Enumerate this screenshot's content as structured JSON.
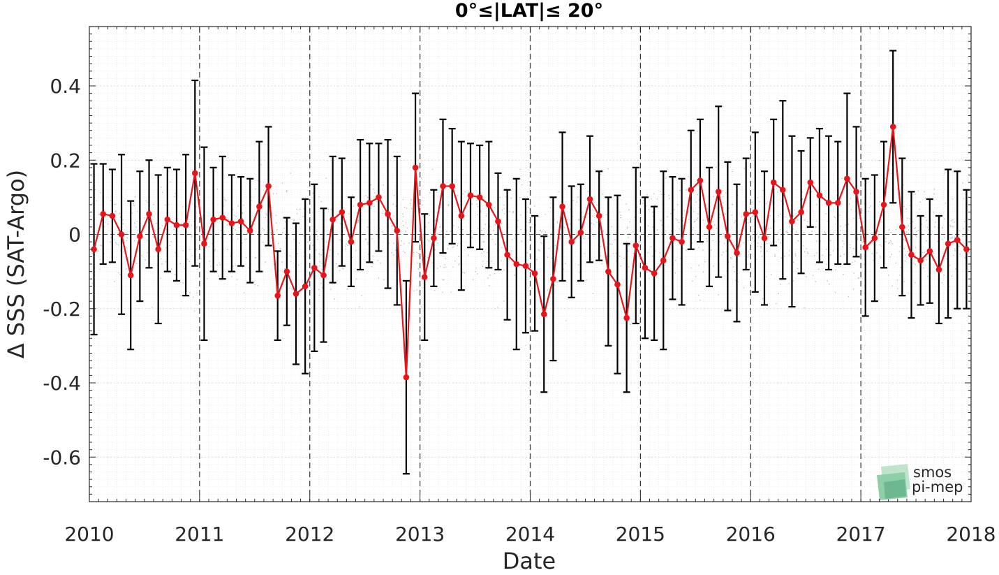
{
  "chart_data": {
    "type": "line",
    "title": "0°≤|LAT|≤ 20°",
    "xlabel": "Date",
    "ylabel": "Δ SSS (SAT-Argo)",
    "x_start_year": 2010,
    "xlim": [
      2010,
      2018
    ],
    "ylim": [
      -0.72,
      0.56
    ],
    "x_ticks": [
      "2010",
      "2011",
      "2012",
      "2013",
      "2014",
      "2015",
      "2016",
      "2017",
      "2018"
    ],
    "y_ticks": [
      {
        "value": 0.4,
        "label": "0.4"
      },
      {
        "value": 0.2,
        "label": "0.2"
      },
      {
        "value": 0,
        "label": "0"
      },
      {
        "value": -0.2,
        "label": "-0.2"
      },
      {
        "value": -0.4,
        "label": "-0.4"
      },
      {
        "value": -0.6,
        "label": "-0.6"
      }
    ],
    "grid": true,
    "year_separators": true,
    "series": [
      {
        "color": "#e8141a",
        "error_bar_color": "#000000",
        "x": [
          "2010-01",
          "2010-02",
          "2010-03",
          "2010-04",
          "2010-05",
          "2010-06",
          "2010-07",
          "2010-08",
          "2010-09",
          "2010-10",
          "2010-11",
          "2010-12",
          "2011-01",
          "2011-02",
          "2011-03",
          "2011-04",
          "2011-05",
          "2011-06",
          "2011-07",
          "2011-08",
          "2011-09",
          "2011-10",
          "2011-11",
          "2011-12",
          "2012-01",
          "2012-02",
          "2012-03",
          "2012-04",
          "2012-05",
          "2012-06",
          "2012-07",
          "2012-08",
          "2012-09",
          "2012-10",
          "2012-11",
          "2012-12",
          "2013-01",
          "2013-02",
          "2013-03",
          "2013-04",
          "2013-05",
          "2013-06",
          "2013-07",
          "2013-08",
          "2013-09",
          "2013-10",
          "2013-11",
          "2013-12",
          "2014-01",
          "2014-02",
          "2014-03",
          "2014-04",
          "2014-05",
          "2014-06",
          "2014-07",
          "2014-08",
          "2014-09",
          "2014-10",
          "2014-11",
          "2014-12",
          "2015-01",
          "2015-02",
          "2015-03",
          "2015-04",
          "2015-05",
          "2015-06",
          "2015-07",
          "2015-08",
          "2015-09",
          "2015-10",
          "2015-11",
          "2015-12",
          "2016-01",
          "2016-02",
          "2016-03",
          "2016-04",
          "2016-05",
          "2016-06",
          "2016-07",
          "2016-08",
          "2016-09",
          "2016-10",
          "2016-11",
          "2016-12",
          "2017-01",
          "2017-02",
          "2017-03",
          "2017-04",
          "2017-05",
          "2017-06",
          "2017-07",
          "2017-08",
          "2017-09",
          "2017-10",
          "2017-11",
          "2017-12"
        ],
        "y": [
          -0.04,
          0.055,
          0.05,
          0.0,
          -0.11,
          -0.005,
          0.055,
          -0.04,
          0.04,
          0.025,
          0.025,
          0.165,
          -0.025,
          0.04,
          0.045,
          0.03,
          0.035,
          0.01,
          0.075,
          0.13,
          -0.165,
          -0.1,
          -0.16,
          -0.14,
          -0.09,
          -0.11,
          0.04,
          0.06,
          -0.02,
          0.08,
          0.085,
          0.1,
          0.055,
          0.01,
          -0.385,
          0.18,
          -0.115,
          -0.01,
          0.13,
          0.13,
          0.05,
          0.105,
          0.1,
          0.08,
          0.035,
          -0.055,
          -0.08,
          -0.085,
          -0.105,
          -0.215,
          -0.12,
          0.075,
          -0.02,
          0.005,
          0.095,
          0.05,
          -0.1,
          -0.135,
          -0.225,
          -0.03,
          -0.09,
          -0.105,
          -0.07,
          -0.01,
          -0.02,
          0.12,
          0.145,
          0.02,
          0.115,
          -0.005,
          -0.05,
          0.055,
          0.06,
          -0.01,
          0.14,
          0.12,
          0.035,
          0.06,
          0.14,
          0.105,
          0.085,
          0.085,
          0.15,
          0.115,
          -0.035,
          -0.01,
          0.08,
          0.29,
          0.02,
          -0.055,
          -0.07,
          -0.045,
          -0.095,
          -0.025,
          -0.015,
          -0.04
        ],
        "err": [
          0.23,
          0.135,
          0.125,
          0.215,
          0.2,
          0.175,
          0.145,
          0.2,
          0.14,
          0.15,
          0.19,
          0.25,
          0.26,
          0.14,
          0.165,
          0.13,
          0.12,
          0.14,
          0.175,
          0.16,
          0.12,
          0.145,
          0.19,
          0.235,
          0.225,
          0.18,
          0.17,
          0.145,
          0.12,
          0.175,
          0.16,
          0.145,
          0.2,
          0.2,
          0.26,
          0.2,
          0.17,
          0.13,
          0.18,
          0.155,
          0.2,
          0.14,
          0.14,
          0.17,
          0.13,
          0.175,
          0.23,
          0.18,
          0.155,
          0.21,
          0.22,
          0.2,
          0.15,
          0.13,
          0.17,
          0.12,
          0.2,
          0.24,
          0.2,
          0.21,
          0.19,
          0.18,
          0.24,
          0.165,
          0.17,
          0.16,
          0.165,
          0.16,
          0.23,
          0.2,
          0.185,
          0.15,
          0.215,
          0.18,
          0.17,
          0.24,
          0.23,
          0.165,
          0.12,
          0.18,
          0.18,
          0.165,
          0.23,
          0.175,
          0.185,
          0.17,
          0.17,
          0.205,
          0.185,
          0.17,
          0.12,
          0.14,
          0.145,
          0.2,
          0.185,
          0.16
        ]
      }
    ]
  },
  "logo": {
    "line1": "smos",
    "line2": "pi-mep",
    "color1": "#7dc49c",
    "color2": "#8aa096"
  }
}
